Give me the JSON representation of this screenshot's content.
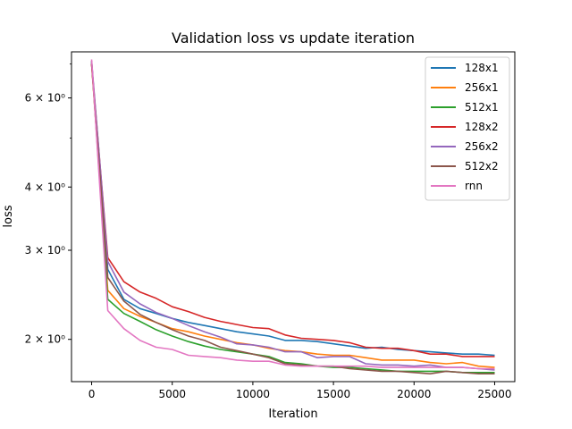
{
  "chart_data": {
    "type": "line",
    "title": "Validation loss vs update iteration",
    "xlabel": "Iteration",
    "ylabel": "loss",
    "xlim": [
      -1250,
      26250
    ],
    "ylim": [
      1.65,
      7.4
    ],
    "yscale": "log",
    "grid": false,
    "legend_position": "top-right",
    "xticks": [
      0,
      5000,
      10000,
      15000,
      20000,
      25000
    ],
    "xtick_labels": [
      "0",
      "5000",
      "10000",
      "15000",
      "20000",
      "25000"
    ],
    "yticks": [
      2,
      3,
      4,
      6
    ],
    "ytick_labels": [
      "2 × 10⁰",
      "3 × 10⁰",
      "4 × 10⁰",
      "6 × 10⁰"
    ],
    "yminor_ticks": [
      5,
      7
    ],
    "x": [
      0,
      1000,
      2000,
      3000,
      4000,
      5000,
      6000,
      7000,
      8000,
      9000,
      10000,
      11000,
      12000,
      13000,
      14000,
      15000,
      16000,
      17000,
      18000,
      19000,
      20000,
      21000,
      22000,
      23000,
      24000,
      25000
    ],
    "series": [
      {
        "name": "128x1",
        "color": "#1f77b4",
        "values": [
          7.05,
          2.75,
          2.4,
          2.3,
          2.25,
          2.2,
          2.16,
          2.13,
          2.1,
          2.07,
          2.05,
          2.03,
          1.99,
          1.99,
          1.98,
          1.96,
          1.94,
          1.92,
          1.93,
          1.91,
          1.9,
          1.89,
          1.88,
          1.87,
          1.87,
          1.86
        ]
      },
      {
        "name": "256x1",
        "color": "#ff7f0e",
        "values": [
          7.0,
          2.5,
          2.3,
          2.22,
          2.16,
          2.1,
          2.07,
          2.03,
          2.0,
          1.97,
          1.95,
          1.92,
          1.9,
          1.89,
          1.87,
          1.86,
          1.86,
          1.84,
          1.82,
          1.82,
          1.82,
          1.8,
          1.79,
          1.8,
          1.77,
          1.76
        ]
      },
      {
        "name": "512x1",
        "color": "#2ca02c",
        "values": [
          7.1,
          2.4,
          2.25,
          2.17,
          2.09,
          2.03,
          1.98,
          1.94,
          1.91,
          1.89,
          1.87,
          1.85,
          1.8,
          1.79,
          1.77,
          1.76,
          1.76,
          1.75,
          1.74,
          1.73,
          1.73,
          1.73,
          1.73,
          1.72,
          1.72,
          1.72
        ]
      },
      {
        "name": "128x2",
        "color": "#d62728",
        "values": [
          7.0,
          2.9,
          2.6,
          2.48,
          2.41,
          2.32,
          2.27,
          2.21,
          2.17,
          2.14,
          2.11,
          2.1,
          2.04,
          2.01,
          2.0,
          1.99,
          1.97,
          1.93,
          1.92,
          1.92,
          1.9,
          1.87,
          1.87,
          1.85,
          1.85,
          1.85
        ]
      },
      {
        "name": "256x2",
        "color": "#9467bd",
        "values": [
          7.1,
          2.85,
          2.48,
          2.35,
          2.26,
          2.2,
          2.13,
          2.07,
          2.02,
          1.96,
          1.95,
          1.93,
          1.89,
          1.89,
          1.84,
          1.85,
          1.85,
          1.79,
          1.78,
          1.78,
          1.77,
          1.78,
          1.76,
          1.76,
          1.75,
          1.74
        ]
      },
      {
        "name": "512x2",
        "color": "#8c564b",
        "values": [
          7.0,
          2.65,
          2.38,
          2.24,
          2.16,
          2.09,
          2.03,
          1.99,
          1.93,
          1.9,
          1.87,
          1.84,
          1.79,
          1.78,
          1.77,
          1.77,
          1.75,
          1.74,
          1.73,
          1.73,
          1.72,
          1.71,
          1.73,
          1.72,
          1.71,
          1.71
        ]
      },
      {
        "name": "rnn",
        "color": "#e377c2",
        "values": [
          7.15,
          2.28,
          2.1,
          1.99,
          1.93,
          1.91,
          1.86,
          1.85,
          1.84,
          1.82,
          1.81,
          1.81,
          1.78,
          1.77,
          1.77,
          1.77,
          1.77,
          1.77,
          1.76,
          1.76,
          1.76,
          1.76,
          1.76,
          1.76,
          1.75,
          1.75
        ]
      }
    ]
  }
}
